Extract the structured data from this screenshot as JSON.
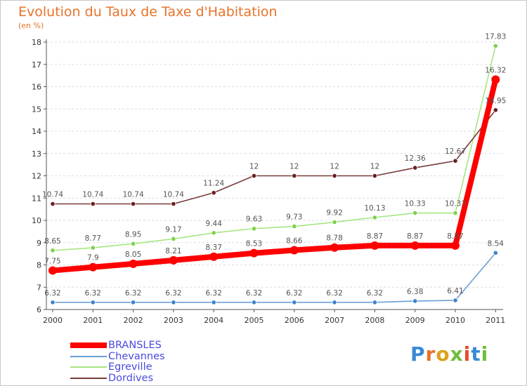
{
  "title": "Evolution du Taux de Taxe d'Habitation",
  "subtitle": "(en %)",
  "logo": "Proxiti",
  "colors": {
    "title": "#e8732a",
    "legend_text": "#4a4ae0",
    "axis": "#555555",
    "gridline": "#dddddd"
  },
  "chart_data": {
    "type": "line",
    "title": "Evolution du Taux de Taxe d'Habitation",
    "subtitle": "(en %)",
    "xlabel": "",
    "ylabel": "",
    "x": [
      "2000",
      "2001",
      "2002",
      "2003",
      "2004",
      "2005",
      "2006",
      "2007",
      "2008",
      "2009",
      "2010",
      "2011"
    ],
    "ylim": [
      6,
      18
    ],
    "yticks": [
      6,
      7,
      8,
      9,
      10,
      11,
      12,
      13,
      14,
      15,
      16,
      17,
      18
    ],
    "grid": "horizontal-dashed",
    "legend_position": "bottom-left",
    "series": [
      {
        "name": "BRANSLES",
        "color": "#ff0000",
        "marker": "#ff0000",
        "width": "thick",
        "values": [
          7.75,
          7.9,
          8.05,
          8.21,
          8.37,
          8.53,
          8.66,
          8.78,
          8.87,
          8.87,
          8.87,
          16.32
        ],
        "labels": [
          "7.75",
          "7.9",
          "8.05",
          "8.21",
          "8.37",
          "8.53",
          "8.66",
          "8.78",
          "8.87",
          "8.87",
          "8.87",
          "16.32"
        ]
      },
      {
        "name": "Chevannes",
        "color": "#6aa0d6",
        "marker": "#3f83c9",
        "width": "thin",
        "values": [
          6.32,
          6.32,
          6.32,
          6.32,
          6.32,
          6.32,
          6.32,
          6.32,
          6.32,
          6.38,
          6.41,
          8.54
        ],
        "labels": [
          "6.32",
          "6.32",
          "6.32",
          "6.32",
          "6.32",
          "6.32",
          "6.32",
          "6.32",
          "6.32",
          "6.38",
          "6.41",
          "8.54"
        ]
      },
      {
        "name": "Egreville",
        "color": "#a6e680",
        "marker": "#7ed04a",
        "width": "thin",
        "values": [
          8.65,
          8.77,
          8.95,
          9.17,
          9.44,
          9.63,
          9.73,
          9.92,
          10.13,
          10.33,
          10.33,
          17.83
        ],
        "labels": [
          "8.65",
          "8.77",
          "8.95",
          "9.17",
          "9.44",
          "9.63",
          "9.73",
          "9.92",
          "10.13",
          "10.33",
          "10.33",
          "17.83"
        ]
      },
      {
        "name": "Dordives",
        "color": "#7a3a3a",
        "marker": "#6b1f1f",
        "width": "thin",
        "values": [
          10.74,
          10.74,
          10.74,
          10.74,
          11.24,
          12,
          12,
          12,
          12,
          12.36,
          12.67,
          14.95
        ],
        "labels": [
          "10.74",
          "10.74",
          "10.74",
          "10.74",
          "11.24",
          "12",
          "12",
          "12",
          "12",
          "12.36",
          "12.67",
          "14.95"
        ]
      }
    ]
  }
}
